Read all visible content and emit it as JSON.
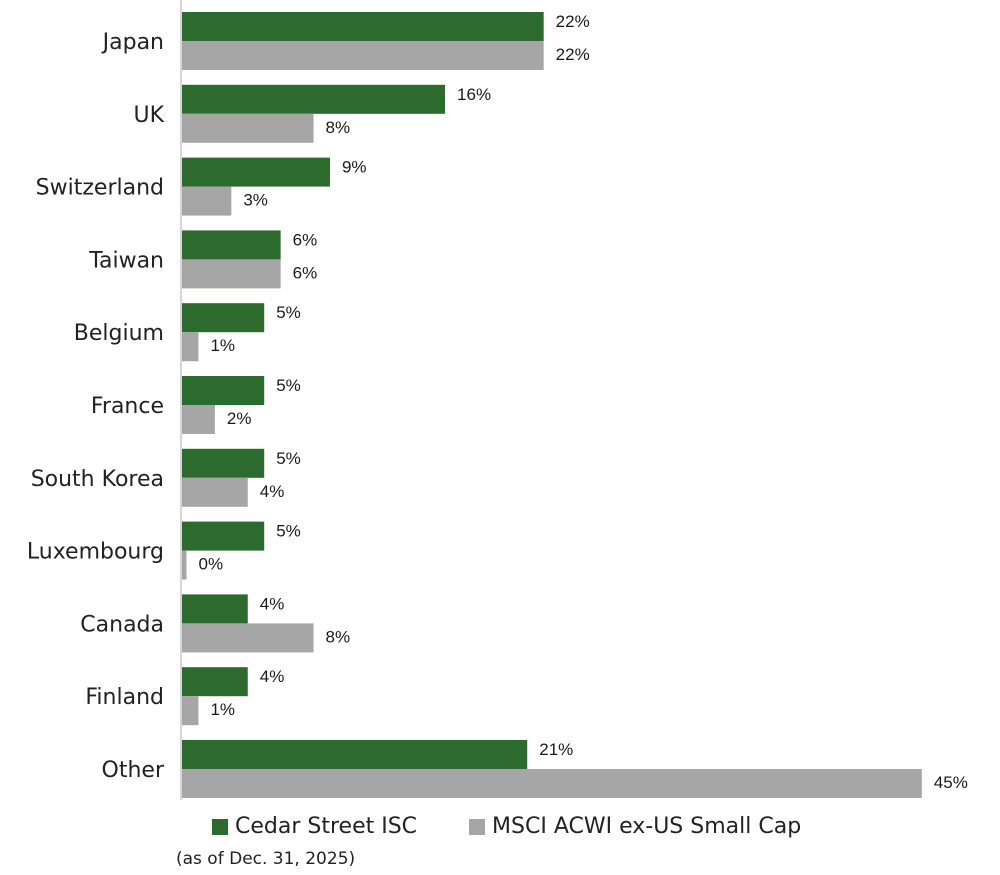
{
  "chart_data": {
    "type": "bar",
    "orientation": "horizontal",
    "categories": [
      "Japan",
      "UK",
      "Switzerland",
      "Taiwan",
      "Belgium",
      "France",
      "South Korea",
      "Luxembourg",
      "Canada",
      "Finland",
      "Other"
    ],
    "series": [
      {
        "name": "Cedar Street ISC",
        "color": "#2d6a2d",
        "values": [
          22,
          16,
          9,
          6,
          5,
          5,
          5,
          5,
          4,
          4,
          21
        ],
        "labels": [
          "22%",
          "16%",
          "9%",
          "6%",
          "5%",
          "5%",
          "5%",
          "5%",
          "4%",
          "4%",
          "21%"
        ]
      },
      {
        "name": "MSCI ACWI ex-US Small Cap",
        "color": "#a6a6a6",
        "values": [
          22,
          8,
          3,
          6,
          1,
          2,
          4,
          0,
          8,
          1,
          45
        ],
        "labels": [
          "22%",
          "8%",
          "3%",
          "6%",
          "1%",
          "2%",
          "4%",
          "0%",
          "8%",
          "1%",
          "45%"
        ]
      }
    ],
    "legend_position": "bottom",
    "grid": false
  },
  "note": "(as of Dec. 31, 2025)"
}
